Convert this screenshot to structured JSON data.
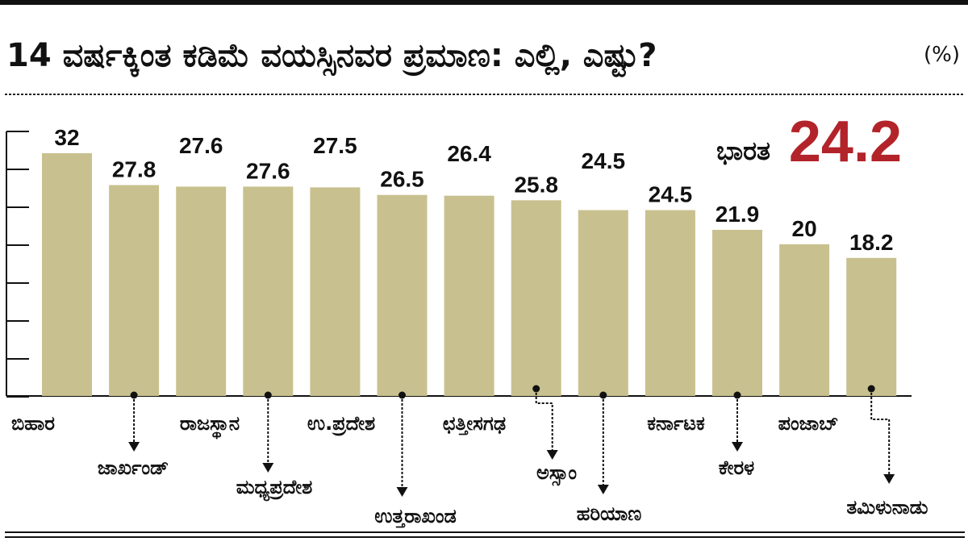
{
  "chart_data": {
    "type": "bar",
    "title": "14 ವರ್ಷಕ್ಕಿಂತ ಕಡಿಮೆ ವಯಸ್ಸಿನವರ ಪ್ರಮಾಣ: ಎಲ್ಲಿ, ಎಷ್ಟು?",
    "unit": "(%)",
    "national_label": "ಭಾರತ",
    "national_value": "24.2",
    "categories": [
      "ಬಿಹಾರ",
      "ಜಾರ್ಖಂಡ್",
      "ರಾಜಸ್ಥಾನ",
      "ಮಧ್ಯಪ್ರದೇಶ",
      "ಉ.ಪ್ರದೇಶ",
      "ಉತ್ತರಾಖಂಡ",
      "ಛತ್ತೀಸಗಢ",
      "ಅಸ್ಸಾಂ",
      "ಹರಿಯಾಣ",
      "ಕರ್ನಾಟಕ",
      "ಕೇರಳ",
      "ಪಂಜಾಬ್",
      "ತಮಿಳುನಾಡು"
    ],
    "values": [
      32,
      27.8,
      27.6,
      27.6,
      27.5,
      26.5,
      26.4,
      25.8,
      24.5,
      24.5,
      21.9,
      20,
      18.2
    ],
    "value_labels": [
      "32",
      "27.8",
      "27.6",
      "27.6",
      "27.5",
      "26.5",
      "26.4",
      "25.8",
      "24.5",
      "24.5",
      "21.9",
      "20",
      "18.2"
    ],
    "ylim": [
      0,
      32
    ],
    "grid": false,
    "colors": {
      "bar": "#c8c18f",
      "accent": "#b3232a",
      "text": "#111111"
    }
  }
}
